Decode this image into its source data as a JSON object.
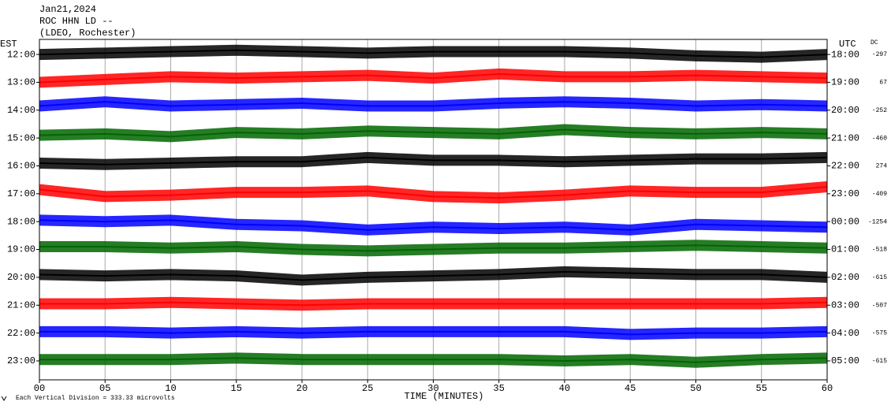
{
  "chart_data": {
    "type": "helicorder",
    "title_lines": [
      "Jan21,2024",
      "ROC HHN LD --",
      "(LDEO, Rochester)"
    ],
    "ylabel": "EST",
    "y2label": "UTC",
    "dc_label": "DC",
    "xlabel": "TIME (MINUTES)",
    "footnote": "Each Vertical Division =  333.33 microvolts",
    "xlim": [
      0,
      60
    ],
    "xticks": [
      {
        "value": 0,
        "label": "00"
      },
      {
        "value": 5,
        "label": "05"
      },
      10,
      15,
      20,
      25,
      30,
      35,
      40,
      45,
      50,
      55,
      60
    ],
    "grid": true,
    "y_inverted": true,
    "ylim": [
      11.46,
      23.68
    ],
    "yticks": [
      {
        "value": 12,
        "label": "12:00"
      },
      {
        "value": 13,
        "label": "13:00"
      },
      {
        "value": 14,
        "label": "14:00"
      },
      {
        "value": 15,
        "label": "15:00"
      },
      {
        "value": 16,
        "label": "16:00"
      },
      {
        "value": 17,
        "label": "17:00"
      },
      {
        "value": 18,
        "label": "18:00"
      },
      {
        "value": 19,
        "label": "19:00"
      },
      {
        "value": 20,
        "label": "20:00"
      },
      {
        "value": 21,
        "label": "21:00"
      },
      {
        "value": 22,
        "label": "22:00"
      },
      {
        "value": 23,
        "label": "23:00"
      }
    ],
    "y2lim": [
      17.46,
      29.68
    ],
    "y2ticks": [
      {
        "value": 18,
        "label": "18:00"
      },
      {
        "value": 19,
        "label": "19:00"
      },
      {
        "value": 20,
        "label": "20:00"
      },
      {
        "value": 21,
        "label": "21:00"
      },
      {
        "value": 22,
        "label": "22:00"
      },
      {
        "value": 23,
        "label": "23:00"
      },
      {
        "value": 24,
        "label": "00:00"
      },
      {
        "value": 25,
        "label": "01:00"
      },
      {
        "value": 26,
        "label": "02:00"
      },
      {
        "value": 27,
        "label": "03:00"
      },
      {
        "value": 28,
        "label": "04:00"
      },
      {
        "value": 29,
        "label": "05:00"
      }
    ],
    "dc": [
      -297,
      67,
      -252,
      -460,
      274,
      -409,
      -1254,
      -518,
      -615,
      -507,
      -575,
      -615
    ],
    "x": [
      0,
      5,
      10,
      15,
      20,
      25,
      30,
      35,
      40,
      45,
      50,
      55,
      60
    ],
    "series": [
      {
        "color": "#000000",
        "values": [
          12.0,
          11.95,
          11.9,
          11.85,
          11.9,
          11.95,
          11.9,
          11.9,
          11.9,
          11.95,
          12.05,
          12.1,
          12.0
        ]
      },
      {
        "color": "#ff0000",
        "values": [
          13.0,
          12.9,
          12.8,
          12.85,
          12.8,
          12.75,
          12.85,
          12.7,
          12.8,
          12.8,
          12.75,
          12.8,
          12.85
        ]
      },
      {
        "color": "#0000ff",
        "values": [
          13.85,
          13.7,
          13.85,
          13.8,
          13.75,
          13.85,
          13.85,
          13.75,
          13.7,
          13.75,
          13.85,
          13.8,
          13.85
        ]
      },
      {
        "color": "#006600",
        "values": [
          14.9,
          14.85,
          14.95,
          14.8,
          14.85,
          14.75,
          14.8,
          14.85,
          14.7,
          14.8,
          14.85,
          14.8,
          14.85
        ]
      },
      {
        "color": "#000000",
        "values": [
          15.9,
          15.95,
          15.9,
          15.85,
          15.85,
          15.7,
          15.8,
          15.8,
          15.85,
          15.8,
          15.75,
          15.75,
          15.7
        ]
      },
      {
        "color": "#ff0000",
        "values": [
          16.85,
          17.1,
          17.05,
          16.95,
          16.95,
          16.9,
          17.1,
          17.15,
          17.05,
          16.9,
          16.95,
          16.95,
          16.75
        ]
      },
      {
        "color": "#0000ff",
        "values": [
          17.95,
          18.0,
          17.95,
          18.1,
          18.15,
          18.3,
          18.2,
          18.25,
          18.2,
          18.3,
          18.1,
          18.15,
          18.2
        ]
      },
      {
        "color": "#006600",
        "values": [
          18.9,
          18.9,
          18.95,
          18.9,
          19.0,
          19.05,
          19.0,
          18.95,
          18.95,
          18.9,
          18.85,
          18.9,
          18.95
        ]
      },
      {
        "color": "#000000",
        "values": [
          19.9,
          19.95,
          19.9,
          19.95,
          20.1,
          20.0,
          19.95,
          19.9,
          19.8,
          19.85,
          19.9,
          19.9,
          20.0
        ]
      },
      {
        "color": "#ff0000",
        "values": [
          20.95,
          20.95,
          20.9,
          20.95,
          21.0,
          20.95,
          20.95,
          20.95,
          20.95,
          20.95,
          20.95,
          20.95,
          20.9
        ]
      },
      {
        "color": "#0000ff",
        "values": [
          21.95,
          21.95,
          22.0,
          21.95,
          22.0,
          21.95,
          21.95,
          21.95,
          21.95,
          22.05,
          22.0,
          22.0,
          21.95
        ]
      },
      {
        "color": "#006600",
        "values": [
          22.95,
          22.95,
          22.95,
          22.9,
          22.95,
          22.95,
          22.95,
          22.95,
          23.0,
          22.95,
          23.05,
          22.95,
          22.9
        ]
      }
    ]
  }
}
